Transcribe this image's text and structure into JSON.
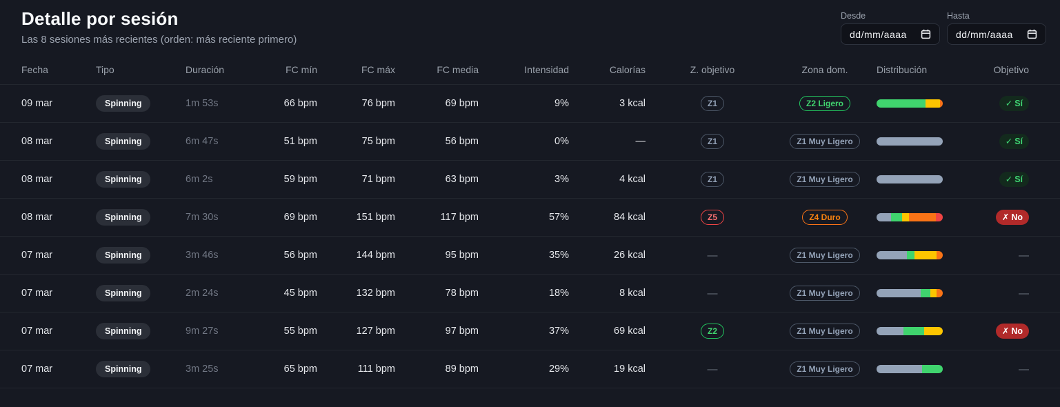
{
  "header": {
    "title": "Detalle por sesión",
    "subtitle": "Las 8 sesiones más recientes (orden: más reciente primero)"
  },
  "filters": {
    "from_label": "Desde",
    "to_label": "Hasta",
    "date_placeholder": "dd/mm/aaaa"
  },
  "palette": {
    "slate": "#94a3b8",
    "green": "#40d46e",
    "yellow": "#fdc500",
    "orange": "#f97316",
    "red": "#ef4444"
  },
  "table": {
    "columns": [
      "Fecha",
      "Tipo",
      "Duración",
      "FC mín",
      "FC máx",
      "FC media",
      "Intensidad",
      "Calorías",
      "Z. objetivo",
      "Zona dom.",
      "Distribución",
      "Objetivo"
    ],
    "rows": [
      {
        "fecha": "09 mar",
        "tipo": "Spinning",
        "duracion": "1m 53s",
        "fc_min": "66 bpm",
        "fc_max": "76 bpm",
        "fc_media": "69 bpm",
        "intensidad": "9%",
        "calorias": "3 kcal",
        "z_objetivo": {
          "label": "Z1",
          "variant": "slate"
        },
        "zona_dom": {
          "label": "Z2 Ligero",
          "variant": "green"
        },
        "distribucion": [
          {
            "color": "green",
            "pct": 74
          },
          {
            "color": "yellow",
            "pct": 22
          },
          {
            "color": "orange",
            "pct": 4
          }
        ],
        "objetivo": {
          "icon": "✓",
          "label": "Sí",
          "variant": "yes"
        }
      },
      {
        "fecha": "08 mar",
        "tipo": "Spinning",
        "duracion": "6m 47s",
        "fc_min": "51 bpm",
        "fc_max": "75 bpm",
        "fc_media": "56 bpm",
        "intensidad": "0%",
        "calorias": "—",
        "z_objetivo": {
          "label": "Z1",
          "variant": "slate"
        },
        "zona_dom": {
          "label": "Z1 Muy Ligero",
          "variant": "slate"
        },
        "distribucion": [
          {
            "color": "slate",
            "pct": 100
          }
        ],
        "objetivo": {
          "icon": "✓",
          "label": "Sí",
          "variant": "yes"
        }
      },
      {
        "fecha": "08 mar",
        "tipo": "Spinning",
        "duracion": "6m 2s",
        "fc_min": "59 bpm",
        "fc_max": "71 bpm",
        "fc_media": "63 bpm",
        "intensidad": "3%",
        "calorias": "4 kcal",
        "z_objetivo": {
          "label": "Z1",
          "variant": "slate"
        },
        "zona_dom": {
          "label": "Z1 Muy Ligero",
          "variant": "slate"
        },
        "distribucion": [
          {
            "color": "slate",
            "pct": 100
          }
        ],
        "objetivo": {
          "icon": "✓",
          "label": "Sí",
          "variant": "yes"
        }
      },
      {
        "fecha": "08 mar",
        "tipo": "Spinning",
        "duracion": "7m 30s",
        "fc_min": "69 bpm",
        "fc_max": "151 bpm",
        "fc_media": "117 bpm",
        "intensidad": "57%",
        "calorias": "84 kcal",
        "z_objetivo": {
          "label": "Z5",
          "variant": "red"
        },
        "zona_dom": {
          "label": "Z4 Duro",
          "variant": "orange"
        },
        "distribucion": [
          {
            "color": "slate",
            "pct": 22
          },
          {
            "color": "green",
            "pct": 17
          },
          {
            "color": "yellow",
            "pct": 10
          },
          {
            "color": "orange",
            "pct": 41
          },
          {
            "color": "red",
            "pct": 10
          }
        ],
        "objetivo": {
          "icon": "✗",
          "label": "No",
          "variant": "no"
        }
      },
      {
        "fecha": "07 mar",
        "tipo": "Spinning",
        "duracion": "3m 46s",
        "fc_min": "56 bpm",
        "fc_max": "144 bpm",
        "fc_media": "95 bpm",
        "intensidad": "35%",
        "calorias": "26 kcal",
        "z_objetivo": null,
        "zona_dom": {
          "label": "Z1 Muy Ligero",
          "variant": "slate"
        },
        "distribucion": [
          {
            "color": "slate",
            "pct": 46
          },
          {
            "color": "green",
            "pct": 11
          },
          {
            "color": "yellow",
            "pct": 34
          },
          {
            "color": "orange",
            "pct": 9
          }
        ],
        "objetivo": null
      },
      {
        "fecha": "07 mar",
        "tipo": "Spinning",
        "duracion": "2m 24s",
        "fc_min": "45 bpm",
        "fc_max": "132 bpm",
        "fc_media": "78 bpm",
        "intensidad": "18%",
        "calorias": "8 kcal",
        "z_objetivo": null,
        "zona_dom": {
          "label": "Z1 Muy Ligero",
          "variant": "slate"
        },
        "distribucion": [
          {
            "color": "slate",
            "pct": 67
          },
          {
            "color": "green",
            "pct": 14
          },
          {
            "color": "yellow",
            "pct": 10
          },
          {
            "color": "orange",
            "pct": 9
          }
        ],
        "objetivo": null
      },
      {
        "fecha": "07 mar",
        "tipo": "Spinning",
        "duracion": "9m 27s",
        "fc_min": "55 bpm",
        "fc_max": "127 bpm",
        "fc_media": "97 bpm",
        "intensidad": "37%",
        "calorias": "69 kcal",
        "z_objetivo": {
          "label": "Z2",
          "variant": "green"
        },
        "zona_dom": {
          "label": "Z1 Muy Ligero",
          "variant": "slate"
        },
        "distribucion": [
          {
            "color": "slate",
            "pct": 41
          },
          {
            "color": "green",
            "pct": 31
          },
          {
            "color": "yellow",
            "pct": 28
          }
        ],
        "objetivo": {
          "icon": "✗",
          "label": "No",
          "variant": "no"
        }
      },
      {
        "fecha": "07 mar",
        "tipo": "Spinning",
        "duracion": "3m 25s",
        "fc_min": "65 bpm",
        "fc_max": "111 bpm",
        "fc_media": "89 bpm",
        "intensidad": "29%",
        "calorias": "19 kcal",
        "z_objetivo": null,
        "zona_dom": {
          "label": "Z1 Muy Ligero",
          "variant": "slate"
        },
        "distribucion": [
          {
            "color": "slate",
            "pct": 69
          },
          {
            "color": "green",
            "pct": 31
          }
        ],
        "objetivo": null
      }
    ]
  }
}
